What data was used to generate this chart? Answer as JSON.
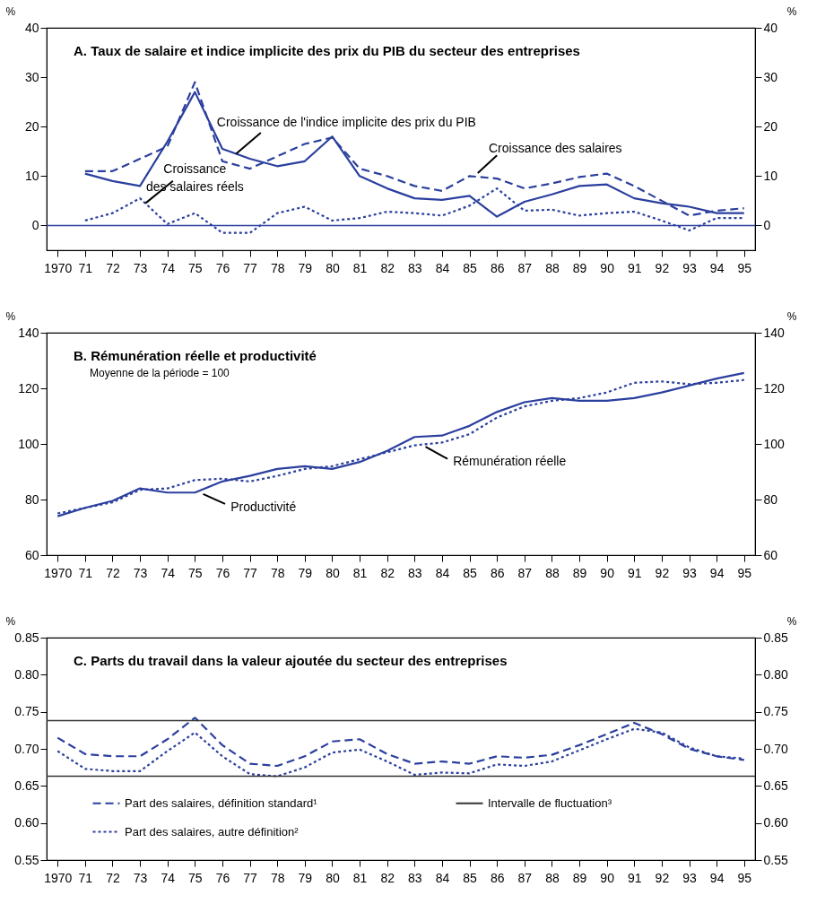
{
  "chart_data": [
    {
      "type": "line",
      "title": "A.  Taux de salaire et indice implicite des prix du PIB du secteur des entreprises",
      "ylabel": "%",
      "y2label": "%",
      "x": [
        1971,
        1972,
        1973,
        1974,
        1975,
        1976,
        1977,
        1978,
        1979,
        1980,
        1981,
        1982,
        1983,
        1984,
        1985,
        1986,
        1987,
        1988,
        1989,
        1990,
        1991,
        1992,
        1993,
        1994,
        1995
      ],
      "series": [
        {
          "color": "#2b3f9e",
          "line_style": "solid",
          "values": [
            10.5,
            9,
            8,
            17,
            27,
            15.5,
            13.5,
            12,
            13,
            18,
            10,
            7.5,
            5.5,
            5.2,
            6,
            1.8,
            4.8,
            6.3,
            8,
            8.3,
            5.5,
            4.5,
            3.8,
            2.5,
            2.5
          ]
        },
        {
          "color": "#2b3f9e",
          "line_style": "dashed",
          "values": [
            11,
            11,
            13.5,
            16,
            29,
            13,
            11.5,
            14,
            16.5,
            17.8,
            11.5,
            10,
            8,
            7,
            10,
            9.5,
            7.5,
            8.5,
            9.8,
            10.5,
            8,
            5,
            2,
            3,
            3.5
          ]
        },
        {
          "color": "#2b3f9e",
          "line_style": "dotted",
          "values": [
            1,
            2.5,
            5.5,
            0.3,
            2.5,
            -1.5,
            -1.5,
            2.5,
            3.8,
            1,
            1.5,
            2.8,
            2.5,
            2,
            4,
            7.5,
            3,
            3.2,
            2,
            2.5,
            2.8,
            1,
            -1,
            1.5,
            1.5
          ]
        }
      ],
      "annotations": [
        {
          "text": "Croissance de l'indice implicite des prix du PIB",
          "x": 1976.5,
          "y": 14.5
        },
        {
          "text": "Croissance des salaires",
          "x": 1985.3,
          "y": 10.6
        },
        {
          "text": "Croissance\ndes salaires réels",
          "x": 1973.2,
          "y": 4.5
        }
      ],
      "ref_lines": [
        {
          "axis": "y",
          "value": 0,
          "color": "#2b3f9e"
        }
      ],
      "xlim": [
        1969.6,
        1995.4
      ],
      "xticks": [
        1970,
        {
          "value": 1971,
          "label": "71"
        },
        {
          "value": 1972,
          "label": "72"
        },
        {
          "value": 1973,
          "label": "73"
        },
        {
          "value": 1974,
          "label": "74"
        },
        {
          "value": 1975,
          "label": "75"
        },
        {
          "value": 1976,
          "label": "76"
        },
        {
          "value": 1977,
          "label": "77"
        },
        {
          "value": 1978,
          "label": "78"
        },
        {
          "value": 1979,
          "label": "79"
        },
        {
          "value": 1980,
          "label": "80"
        },
        {
          "value": 1981,
          "label": "81"
        },
        {
          "value": 1982,
          "label": "82"
        },
        {
          "value": 1983,
          "label": "83"
        },
        {
          "value": 1984,
          "label": "84"
        },
        {
          "value": 1985,
          "label": "85"
        },
        {
          "value": 1986,
          "label": "86"
        },
        {
          "value": 1987,
          "label": "87"
        },
        {
          "value": 1988,
          "label": "88"
        },
        {
          "value": 1989,
          "label": "89"
        },
        {
          "value": 1990,
          "label": "90"
        },
        {
          "value": 1991,
          "label": "91"
        },
        {
          "value": 1992,
          "label": "92"
        },
        {
          "value": 1993,
          "label": "93"
        },
        {
          "value": 1994,
          "label": "94"
        },
        {
          "value": 1995,
          "label": "95"
        }
      ],
      "ylim": [
        -5,
        40
      ],
      "yticks": [
        0,
        10,
        20,
        30,
        40
      ],
      "y2lim": [
        -5,
        40
      ],
      "y2ticks": [
        0,
        10,
        20,
        30,
        40
      ],
      "grid": false,
      "legend": false
    },
    {
      "type": "line",
      "title": "B.  Rémunération réelle et productivité",
      "subtitle": "Moyenne de la période = 100",
      "ylabel": "%",
      "y2label": "%",
      "x": [
        1970,
        1971,
        1972,
        1973,
        1974,
        1975,
        1976,
        1977,
        1978,
        1979,
        1980,
        1981,
        1982,
        1983,
        1984,
        1985,
        1986,
        1987,
        1988,
        1989,
        1990,
        1991,
        1992,
        1993,
        1994,
        1995
      ],
      "series": [
        {
          "color": "#2b3f9e",
          "line_style": "solid",
          "values": [
            74,
            77,
            79.5,
            84,
            82.5,
            82.5,
            86.5,
            88.5,
            91,
            92,
            91,
            93.5,
            97.5,
            102.5,
            103,
            106.5,
            111.5,
            115,
            116.5,
            115.5,
            115.5,
            116.5,
            118.5,
            121,
            123.5,
            125.5
          ]
        },
        {
          "color": "#2b3f9e",
          "line_style": "dotted",
          "values": [
            75,
            77,
            79,
            83.5,
            84,
            87,
            87.5,
            86.5,
            88.5,
            91,
            92,
            94.5,
            97,
            99.5,
            100.5,
            103.5,
            109.5,
            113.5,
            115.5,
            116.5,
            118.5,
            122,
            122.5,
            121.5,
            122,
            123
          ]
        }
      ],
      "annotations": [
        {
          "text": "Productivité",
          "x": 1975.3,
          "y": 82
        },
        {
          "text": "Rémunération réelle",
          "x": 1983.4,
          "y": 99
        }
      ],
      "xlim": [
        1969.6,
        1995.4
      ],
      "xticks": [
        1970,
        {
          "value": 1971,
          "label": "71"
        },
        {
          "value": 1972,
          "label": "72"
        },
        {
          "value": 1973,
          "label": "73"
        },
        {
          "value": 1974,
          "label": "74"
        },
        {
          "value": 1975,
          "label": "75"
        },
        {
          "value": 1976,
          "label": "76"
        },
        {
          "value": 1977,
          "label": "77"
        },
        {
          "value": 1978,
          "label": "78"
        },
        {
          "value": 1979,
          "label": "79"
        },
        {
          "value": 1980,
          "label": "80"
        },
        {
          "value": 1981,
          "label": "81"
        },
        {
          "value": 1982,
          "label": "82"
        },
        {
          "value": 1983,
          "label": "83"
        },
        {
          "value": 1984,
          "label": "84"
        },
        {
          "value": 1985,
          "label": "85"
        },
        {
          "value": 1986,
          "label": "86"
        },
        {
          "value": 1987,
          "label": "87"
        },
        {
          "value": 1988,
          "label": "88"
        },
        {
          "value": 1989,
          "label": "89"
        },
        {
          "value": 1990,
          "label": "90"
        },
        {
          "value": 1991,
          "label": "91"
        },
        {
          "value": 1992,
          "label": "92"
        },
        {
          "value": 1993,
          "label": "93"
        },
        {
          "value": 1994,
          "label": "94"
        },
        {
          "value": 1995,
          "label": "95"
        }
      ],
      "ylim": [
        60,
        140
      ],
      "yticks": [
        60,
        80,
        100,
        120,
        140
      ],
      "y2lim": [
        60,
        140
      ],
      "y2ticks": [
        60,
        80,
        100,
        120,
        140
      ],
      "grid": false,
      "legend": false
    },
    {
      "type": "line",
      "title": "C.  Parts du travail dans la valeur ajoutée du secteur des entreprises",
      "ylabel": "%",
      "y2label": "%",
      "x": [
        1970,
        1971,
        1972,
        1973,
        1974,
        1975,
        1976,
        1977,
        1978,
        1979,
        1980,
        1981,
        1982,
        1983,
        1984,
        1985,
        1986,
        1987,
        1988,
        1989,
        1990,
        1991,
        1992,
        1993,
        1994,
        1995
      ],
      "series": [
        {
          "name": "Part des salaires, définition standard¹",
          "color": "#2b3f9e",
          "line_style": "dashed",
          "values": [
            0.715,
            0.693,
            0.69,
            0.69,
            0.713,
            0.742,
            0.705,
            0.68,
            0.677,
            0.69,
            0.71,
            0.713,
            0.693,
            0.68,
            0.683,
            0.68,
            0.69,
            0.688,
            0.692,
            0.705,
            0.72,
            0.735,
            0.72,
            0.7,
            0.69,
            0.685
          ]
        },
        {
          "name": "Part des salaires, autre définition²",
          "color": "#2b3f9e",
          "line_style": "dotted",
          "values": [
            0.697,
            0.673,
            0.67,
            0.67,
            0.697,
            0.722,
            0.69,
            0.666,
            0.663,
            0.675,
            0.695,
            0.699,
            0.683,
            0.665,
            0.668,
            0.667,
            0.679,
            0.677,
            0.683,
            0.698,
            0.713,
            0.727,
            0.722,
            0.702,
            0.69,
            0.687
          ]
        }
      ],
      "ref_lines": [
        {
          "axis": "y",
          "value": 0.738,
          "color": "#333333",
          "label": "Intervalle de fluctuation³"
        },
        {
          "axis": "y",
          "value": 0.663,
          "color": "#333333"
        }
      ],
      "xlim": [
        1969.6,
        1995.4
      ],
      "xticks": [
        1970,
        {
          "value": 1971,
          "label": "71"
        },
        {
          "value": 1972,
          "label": "72"
        },
        {
          "value": 1973,
          "label": "73"
        },
        {
          "value": 1974,
          "label": "74"
        },
        {
          "value": 1975,
          "label": "75"
        },
        {
          "value": 1976,
          "label": "76"
        },
        {
          "value": 1977,
          "label": "77"
        },
        {
          "value": 1978,
          "label": "78"
        },
        {
          "value": 1979,
          "label": "79"
        },
        {
          "value": 1980,
          "label": "80"
        },
        {
          "value": 1981,
          "label": "81"
        },
        {
          "value": 1982,
          "label": "82"
        },
        {
          "value": 1983,
          "label": "83"
        },
        {
          "value": 1984,
          "label": "84"
        },
        {
          "value": 1985,
          "label": "85"
        },
        {
          "value": 1986,
          "label": "86"
        },
        {
          "value": 1987,
          "label": "87"
        },
        {
          "value": 1988,
          "label": "88"
        },
        {
          "value": 1989,
          "label": "89"
        },
        {
          "value": 1990,
          "label": "90"
        },
        {
          "value": 1991,
          "label": "91"
        },
        {
          "value": 1992,
          "label": "92"
        },
        {
          "value": 1993,
          "label": "93"
        },
        {
          "value": 1994,
          "label": "94"
        },
        {
          "value": 1995,
          "label": "95"
        }
      ],
      "ylim": [
        0.55,
        0.85
      ],
      "yticks": [
        0.55,
        {
          "value": 0.6,
          "label": "0.60"
        },
        0.65,
        {
          "value": 0.7,
          "label": "0.70"
        },
        0.75,
        {
          "value": 0.8,
          "label": "0.80"
        },
        0.85
      ],
      "y2lim": [
        0.55,
        0.85
      ],
      "y2ticks": [
        0.55,
        {
          "value": 0.6,
          "label": "0.60"
        },
        0.65,
        {
          "value": 0.7,
          "label": "0.70"
        },
        0.75,
        {
          "value": 0.8,
          "label": "0.80"
        },
        0.85
      ],
      "grid": false,
      "legend": "bottom"
    }
  ]
}
